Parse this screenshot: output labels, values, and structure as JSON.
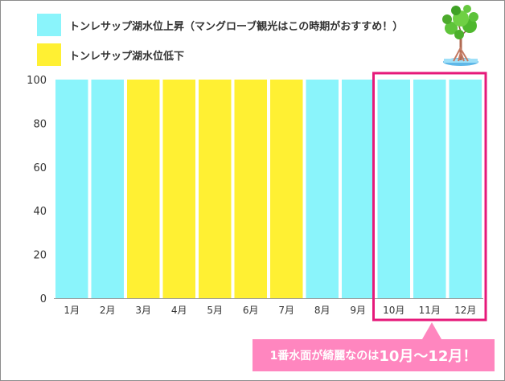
{
  "legend": [
    {
      "label": "トンレサップ湖水位上昇（マングローブ観光はこの時期がおすすめ！）",
      "color": "#8af4fb"
    },
    {
      "label": "トンレサップ湖水位低下",
      "color": "#fff033"
    }
  ],
  "chart_data": {
    "type": "bar",
    "categories": [
      "1月",
      "2月",
      "3月",
      "4月",
      "5月",
      "6月",
      "7月",
      "8月",
      "9月",
      "10月",
      "11月",
      "12月"
    ],
    "values": [
      100,
      100,
      100,
      100,
      100,
      100,
      100,
      100,
      100,
      100,
      100,
      100
    ],
    "bar_series": [
      "rising",
      "rising",
      "falling",
      "falling",
      "falling",
      "falling",
      "falling",
      "rising",
      "rising",
      "rising",
      "rising",
      "rising"
    ],
    "colors": {
      "rising": "#8af4fb",
      "falling": "#fff033",
      "highlight": "#e6197a",
      "callout_bg": "#ff86bf"
    },
    "ylim": [
      0,
      100
    ],
    "yticks": [
      0,
      20,
      40,
      60,
      80,
      100
    ],
    "grid": false,
    "legend_position": "top-left",
    "highlight_categories": [
      "10月",
      "11月",
      "12月"
    ]
  },
  "callout": {
    "text_small": "1番水面が綺麗なのは",
    "text_big": "10月〜12月！"
  },
  "tree_icon": "mangrove-tree-icon"
}
